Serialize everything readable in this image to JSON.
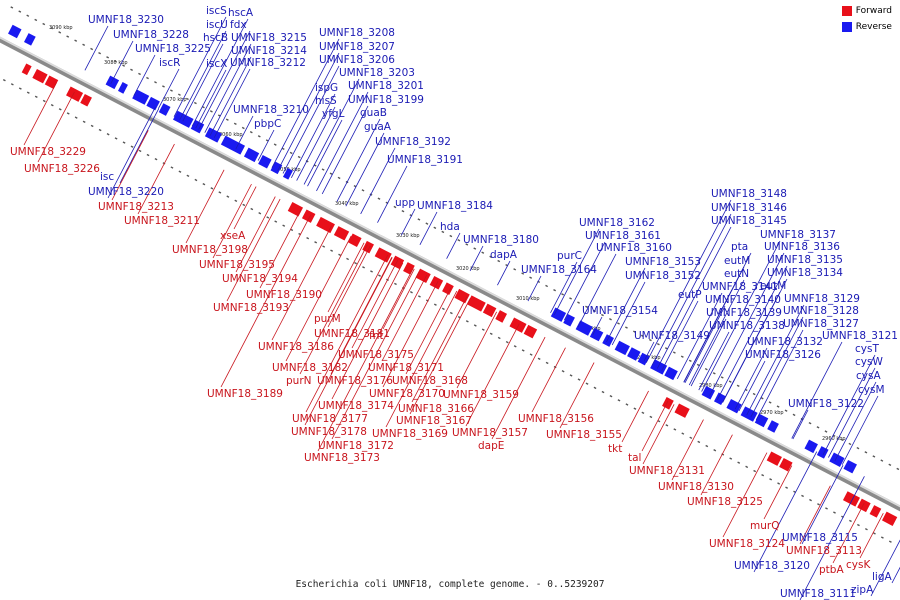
{
  "legend": {
    "forward": {
      "label": "Forward",
      "color": "#e8101a"
    },
    "reverse": {
      "label": "Reverse",
      "color": "#1a1af0"
    }
  },
  "caption": "Escherichia coli UMNF18, complete genome. - 0..5239207",
  "ticks": [
    "3090 kbp",
    "3080 kbp",
    "3070 kbp",
    "3060 kbp",
    "3050 kbp",
    "3040 kbp",
    "3030 kbp",
    "3020 kbp",
    "3010 kbp",
    "3000 kbp",
    "2990 kbp",
    "2980 kbp",
    "2970 kbp",
    "2960 kbp"
  ],
  "reverse_labels": [
    "UMNF18_3230",
    "iscS",
    "hscA",
    "iscU",
    "fdx",
    "UMNF18_3228",
    "hscB",
    "UMNF18_3215",
    "UMNF18_3225",
    "UMNF18_3214",
    "iscR",
    "iscX",
    "UMNF18_3212",
    "UMNF18_3208",
    "UMNF18_3207",
    "UMNF18_3206",
    "UMNF18_3203",
    "ispG",
    "UMNF18_3201",
    "hisS",
    "UMNF18_3199",
    "UMNF18_3210",
    "yfgL",
    "pbpC",
    "guaB",
    "guaA",
    "UMNF18_3192",
    "UMNF18_3191",
    "upp",
    "UMNF18_3184",
    "hda",
    "UMNF18_3180",
    "dapA",
    "UMNF18_3162",
    "UMNF18_3161",
    "purC",
    "UMNF18_3160",
    "UMNF18_3164",
    "UMNF18_3153",
    "UMNF18_3152",
    "UMNF18_3154",
    "UMNF18_3148",
    "UMNF18_3146",
    "UMNF18_3145",
    "UMNF18_3137",
    "pta",
    "UMNF18_3136",
    "eutM",
    "UMNF18_3135",
    "eutN",
    "UMNF18_3134",
    "UMNF18_3141",
    "eutM",
    "eutP",
    "UMNF18_3140",
    "UMNF18_3129",
    "UMNF18_3139",
    "UMNF18_3128",
    "UMNF18_3138",
    "UMNF18_3127",
    "UMNF18_3149",
    "UMNF18_3121",
    "UMNF18_3132",
    "cysT",
    "UMNF18_3126",
    "cysW",
    "cysA",
    "cysM",
    "UMNF18_3122",
    "UMNF18_3115",
    "UMNF18_3120",
    "ligA",
    "zipA",
    "UMNF18_3111",
    "isc",
    "UMNF18_3220"
  ],
  "forward_labels": [
    "UMNF18_3229",
    "UMNF18_3226",
    "UMNF18_3213",
    "UMNF18_3211",
    "xseA",
    "UMNF18_3198",
    "UMNF18_3195",
    "UMNF18_3194",
    "UMNF18_3190",
    "UMNF18_3193",
    "purM",
    "UMNF18_3181",
    "fnt",
    "UMNF18_3186",
    "UMNF18_3175",
    "UMNF18_3182",
    "UMNF18_3171",
    "purN",
    "UMNF18_3176",
    "UMNF18_3168",
    "UMNF18_3189",
    "UMNF18_3170",
    "UMNF18_3159",
    "UMNF18_3174",
    "UMNF18_3166",
    "UMNF18_3177",
    "UMNF18_3167",
    "UMNF18_3178",
    "UMNF18_3169",
    "UMNF18_3157",
    "UMNF18_3156",
    "UMNF18_3172",
    "dapE",
    "UMNF18_3155",
    "UMNF18_3173",
    "tkt",
    "tal",
    "UMNF18_3131",
    "UMNF18_3130",
    "UMNF18_3125",
    "murQ",
    "UMNF18_3124",
    "UMNF18_3113",
    "cysK",
    "ptbA"
  ]
}
